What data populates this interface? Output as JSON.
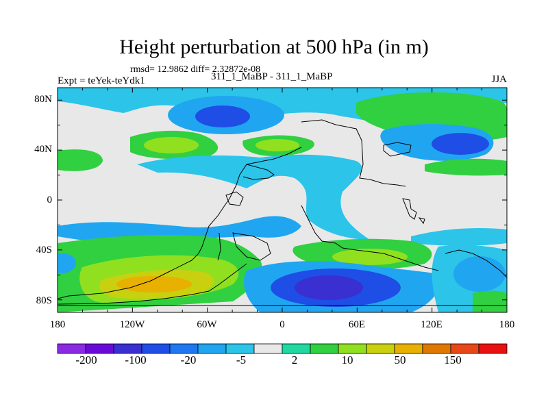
{
  "title": "Height perturbation at 500 hPa (in m)",
  "stats_text": "rmsd= 12.9862 diff= 2.32872e-08",
  "experiment_label": "Expt = teYek-teYdk1",
  "runs_label": "311_1_MaBP - 311_1_MaBP",
  "season_label": "JJA",
  "map": {
    "projection": "cylindrical equidistant",
    "lon_range": [
      -180,
      180
    ],
    "lat_range": [
      -90,
      90
    ],
    "x_ticks": [
      "180",
      "120W",
      "60W",
      "0",
      "60E",
      "120E",
      "180"
    ],
    "y_ticks": [
      "80N",
      "40N",
      "0",
      "40S",
      "80S"
    ],
    "background_color": "#e8e8e8"
  },
  "colorbar": {
    "colors": [
      "#8a2be2",
      "#6a0ad8",
      "#3a2fd0",
      "#1e4ee6",
      "#1f78f0",
      "#20a6f0",
      "#2cc4e8",
      "#e8e8e8",
      "#20d8a0",
      "#30d040",
      "#90e020",
      "#c8d010",
      "#e8b000",
      "#e07800",
      "#e84818",
      "#e81010"
    ],
    "tick_labels": [
      "-200",
      "-100",
      "-20",
      "-5",
      "2",
      "10",
      "50",
      "150"
    ]
  }
}
